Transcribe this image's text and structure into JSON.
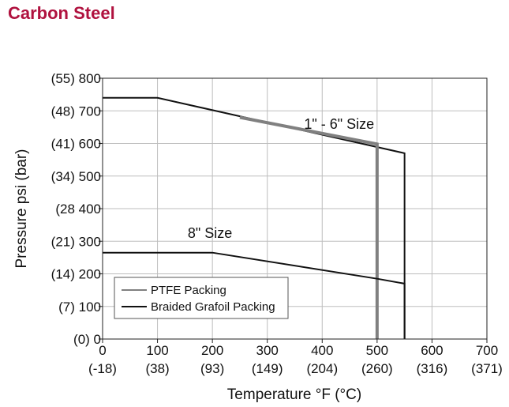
{
  "title": "Carbon Steel",
  "chart_data": {
    "type": "line",
    "title": "Carbon Steel",
    "xlabel": "Temperature °F (°C)",
    "ylabel": "Pressure psi (bar)",
    "xlim": [
      0,
      700
    ],
    "ylim": [
      0,
      800
    ],
    "grid": true,
    "x_ticks": [
      {
        "value": 0,
        "f": "0",
        "c": "(-18)"
      },
      {
        "value": 100,
        "f": "100",
        "c": "(38)"
      },
      {
        "value": 200,
        "f": "200",
        "c": "(93)"
      },
      {
        "value": 300,
        "f": "300",
        "c": "(149)"
      },
      {
        "value": 400,
        "f": "400",
        "c": "(204)"
      },
      {
        "value": 500,
        "f": "500",
        "c": "(260)"
      },
      {
        "value": 600,
        "f": "600",
        "c": "(316)"
      },
      {
        "value": 700,
        "f": "700",
        "c": "(371)"
      }
    ],
    "y_ticks": [
      {
        "value": 0,
        "label": "(0)     0"
      },
      {
        "value": 100,
        "label": "(7)  100"
      },
      {
        "value": 200,
        "label": "(14) 200"
      },
      {
        "value": 300,
        "label": "(21) 300"
      },
      {
        "value": 400,
        "label": "(28  400"
      },
      {
        "value": 500,
        "label": "(34) 500"
      },
      {
        "value": 600,
        "label": "(41) 600"
      },
      {
        "value": 700,
        "label": "(48) 700"
      },
      {
        "value": 800,
        "label": "(55) 800"
      }
    ],
    "series": [
      {
        "name": "Braided Grafoil Packing",
        "group": "1\" - 6\" Size",
        "color": "#111111",
        "points": [
          [
            0,
            740
          ],
          [
            100,
            740
          ],
          [
            550,
            570
          ],
          [
            550,
            0
          ]
        ]
      },
      {
        "name": "PTFE Packing",
        "group": "1\" - 6\" Size",
        "color": "#808080",
        "points": [
          [
            250,
            680
          ],
          [
            500,
            598
          ],
          [
            500,
            0
          ]
        ]
      },
      {
        "name": "Braided Grafoil Packing",
        "group": "8\" Size",
        "color": "#111111",
        "points": [
          [
            0,
            265
          ],
          [
            200,
            265
          ],
          [
            500,
            185
          ],
          [
            550,
            170
          ],
          [
            550,
            0
          ]
        ]
      }
    ],
    "annotations": [
      {
        "text": "1\" - 6\" Size",
        "x": 367,
        "y": 645
      },
      {
        "text": "8\" Size",
        "x": 155,
        "y": 310
      }
    ],
    "legend": {
      "position": "bottom-left",
      "entries": [
        {
          "name": "PTFE Packing",
          "color": "#808080"
        },
        {
          "name": "Braided Grafoil Packing",
          "color": "#111111"
        }
      ]
    }
  }
}
